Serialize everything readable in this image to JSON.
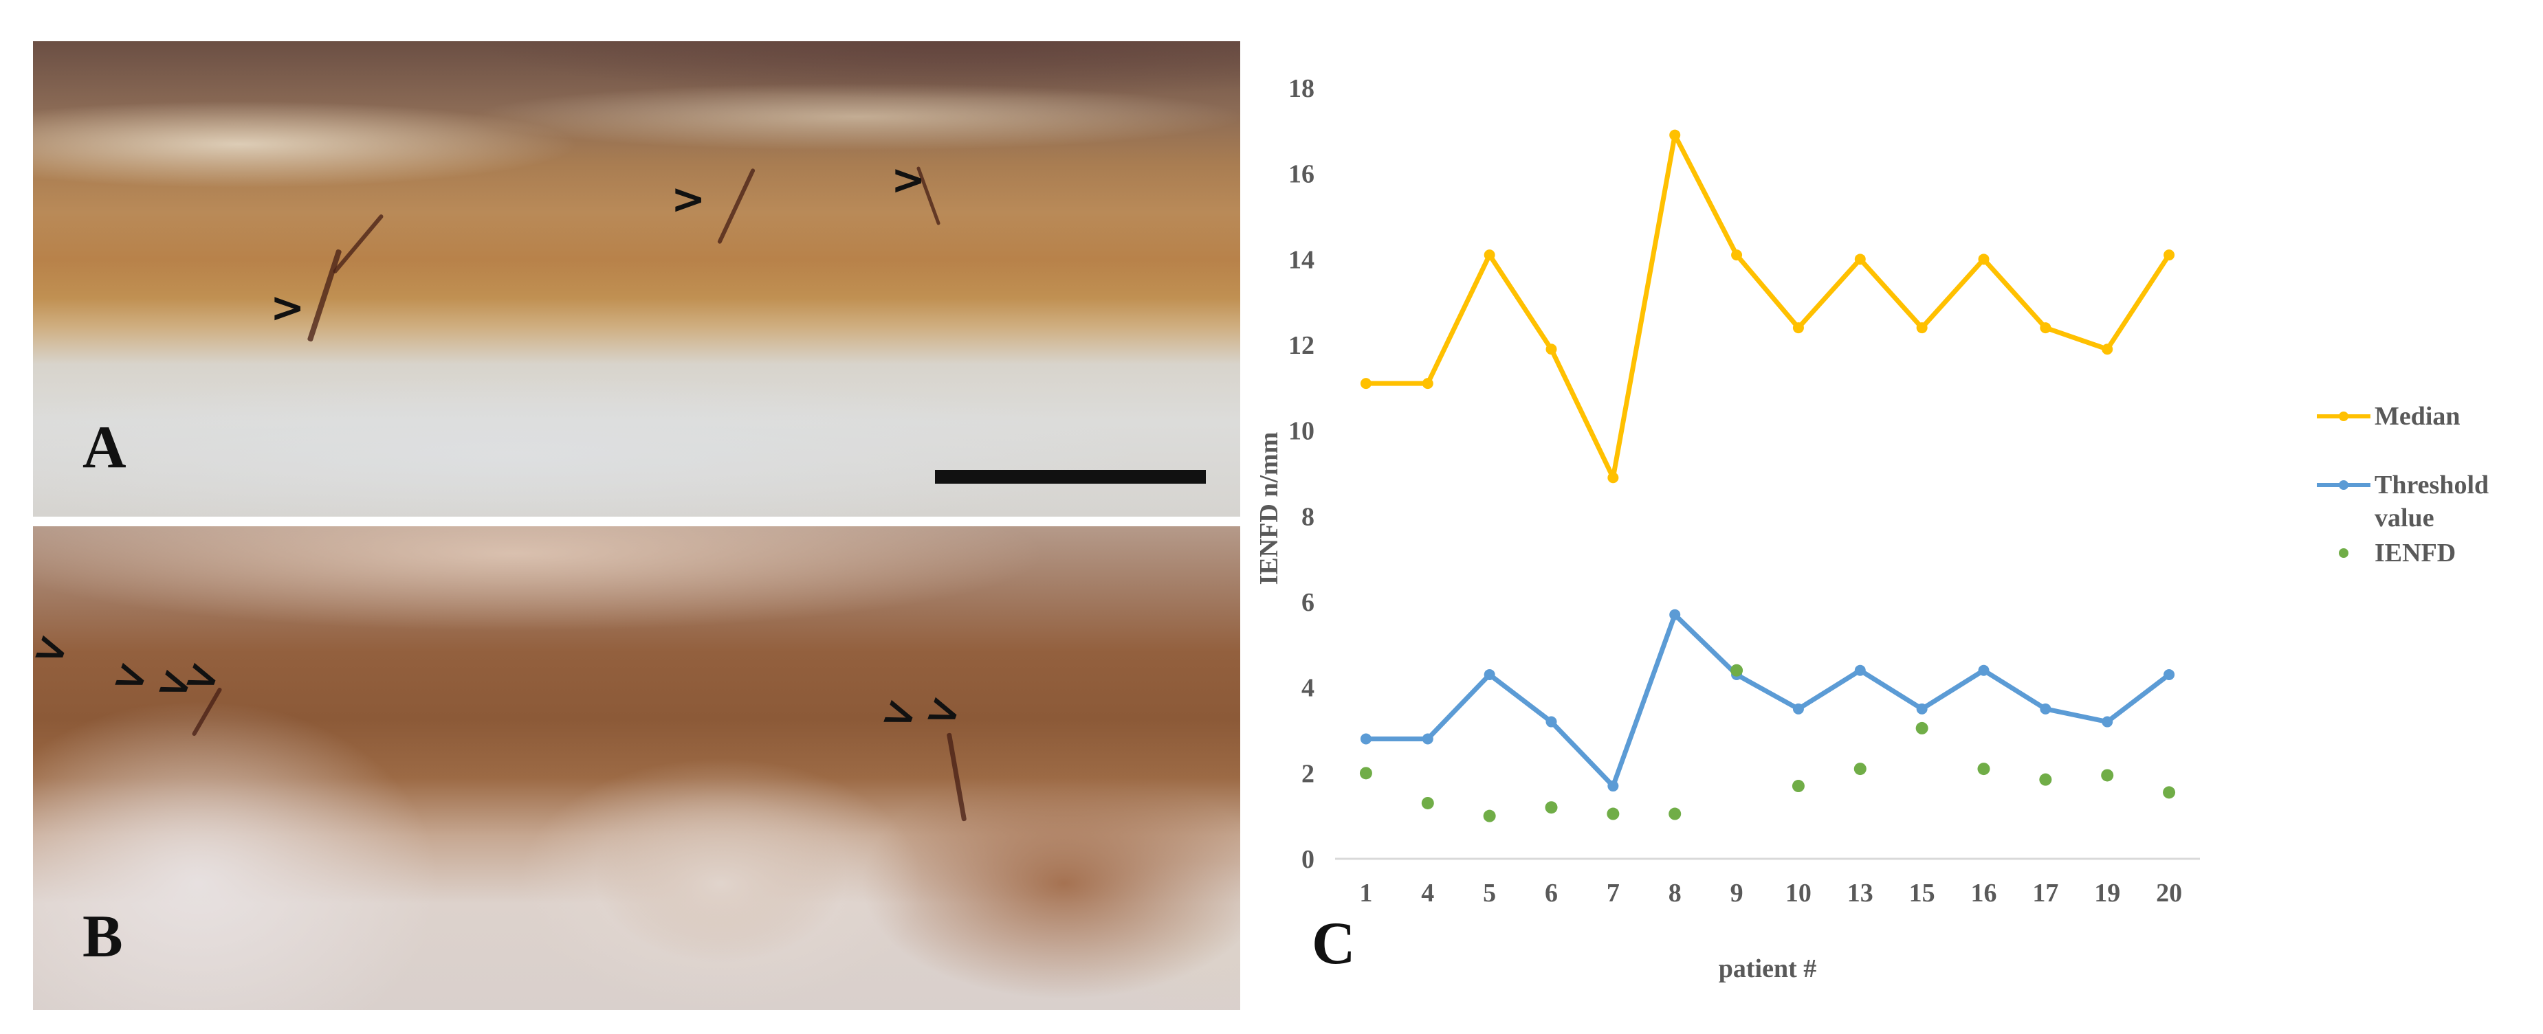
{
  "panels": {
    "a": {
      "letter": "A"
    },
    "b": {
      "letter": "B"
    },
    "c": {
      "letter": "C"
    }
  },
  "colors": {
    "median": "#ffc000",
    "threshold": "#5b9bd5",
    "ienfd": "#70ad47",
    "axis": "#d9d9d9",
    "text": "#595959"
  },
  "chart_data": {
    "type": "line",
    "categories": [
      "1",
      "4",
      "5",
      "6",
      "7",
      "8",
      "9",
      "10",
      "13",
      "15",
      "16",
      "17",
      "19",
      "20"
    ],
    "xlabel": "patient #",
    "ylabel": "IENFD n/mm",
    "ylim": [
      0,
      18
    ],
    "yticks": [
      "0",
      "2",
      "4",
      "6",
      "8",
      "10",
      "12",
      "14",
      "16",
      "18"
    ],
    "grid": false,
    "legend_position": "right",
    "series": [
      {
        "name": "Median",
        "kind": "line",
        "color": "#ffc000",
        "values": [
          11.1,
          11.1,
          14.1,
          11.9,
          8.9,
          16.9,
          14.1,
          12.4,
          14.0,
          12.4,
          14.0,
          12.4,
          11.9,
          14.1
        ]
      },
      {
        "name": "Threshold value",
        "kind": "line",
        "color": "#5b9bd5",
        "values": [
          2.8,
          2.8,
          4.3,
          3.2,
          1.7,
          5.7,
          4.3,
          3.5,
          4.4,
          3.5,
          4.4,
          3.5,
          3.2,
          4.3
        ]
      },
      {
        "name": "IENFD",
        "kind": "scatter",
        "color": "#70ad47",
        "values": [
          2.0,
          1.3,
          1.0,
          1.2,
          1.05,
          1.05,
          4.4,
          1.7,
          2.1,
          3.05,
          2.1,
          1.85,
          1.95,
          1.55
        ]
      }
    ]
  },
  "legend": {
    "median": "Median",
    "threshold_line1": "Threshold",
    "threshold_line2": "value",
    "ienfd": "IENFD"
  }
}
